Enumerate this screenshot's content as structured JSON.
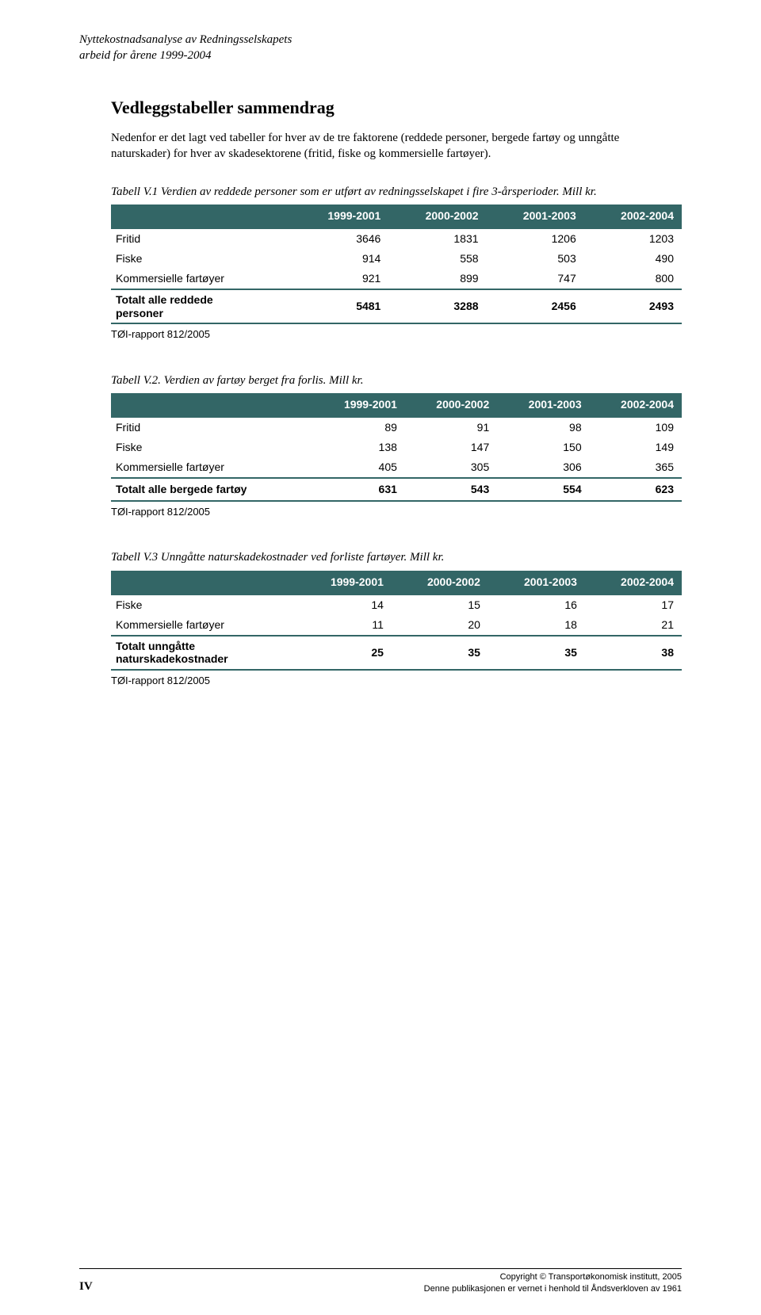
{
  "running_header": {
    "line1": "Nyttekostnadsanalyse av Redningsselskapets",
    "line2": "arbeid for årene 1999-2004"
  },
  "section_title": "Vedleggstabeller sammendrag",
  "intro": "Nedenfor er det lagt ved tabeller for hver av de tre faktorene (reddede personer, bergede fartøy og unngåtte naturskader) for hver av skadesektorene (fritid, fiske og kommersielle fartøyer).",
  "table1": {
    "caption": "Tabell V.1 Verdien av reddede personer som er utført av redningsselskapet i fire 3-årsperioder. Mill kr.",
    "header_bg": "#336666",
    "header_fg": "#ffffff",
    "border_color": "#336666",
    "columns": [
      "",
      "1999-2001",
      "2000-2002",
      "2001-2003",
      "2002-2004"
    ],
    "rows": [
      [
        "Fritid",
        "3646",
        "1831",
        "1206",
        "1203"
      ],
      [
        "Fiske",
        "914",
        "558",
        "503",
        "490"
      ],
      [
        "Kommersielle fartøyer",
        "921",
        "899",
        "747",
        "800"
      ]
    ],
    "total": [
      "Totalt alle reddede\npersoner",
      "5481",
      "3288",
      "2456",
      "2493"
    ],
    "note": "TØI-rapport 812/2005"
  },
  "table2": {
    "caption": "Tabell V.2. Verdien av fartøy berget fra forlis. Mill kr.",
    "columns": [
      "",
      "1999-2001",
      "2000-2002",
      "2001-2003",
      "2002-2004"
    ],
    "rows": [
      [
        "Fritid",
        "89",
        "91",
        "98",
        "109"
      ],
      [
        "Fiske",
        "138",
        "147",
        "150",
        "149"
      ],
      [
        "Kommersielle fartøyer",
        "405",
        "305",
        "306",
        "365"
      ]
    ],
    "total": [
      "Totalt alle bergede fartøy",
      "631",
      "543",
      "554",
      "623"
    ],
    "note": "TØI-rapport 812/2005"
  },
  "table3": {
    "caption": "Tabell V.3 Unngåtte naturskadekostnader ved forliste fartøyer. Mill kr.",
    "columns": [
      "",
      "1999-2001",
      "2000-2002",
      "2001-2003",
      "2002-2004"
    ],
    "rows": [
      [
        "Fiske",
        "14",
        "15",
        "16",
        "17"
      ],
      [
        "Kommersielle fartøyer",
        "11",
        "20",
        "18",
        "21"
      ]
    ],
    "total": [
      "Totalt unngåtte\nnaturskadekostnader",
      "25",
      "35",
      "35",
      "38"
    ],
    "note": "TØI-rapport 812/2005"
  },
  "footer": {
    "page_number": "IV",
    "copyright_line1": "Copyright © Transportøkonomisk institutt, 2005",
    "copyright_line2": "Denne publikasjonen er vernet i henhold til Åndsverkloven av 1961"
  }
}
